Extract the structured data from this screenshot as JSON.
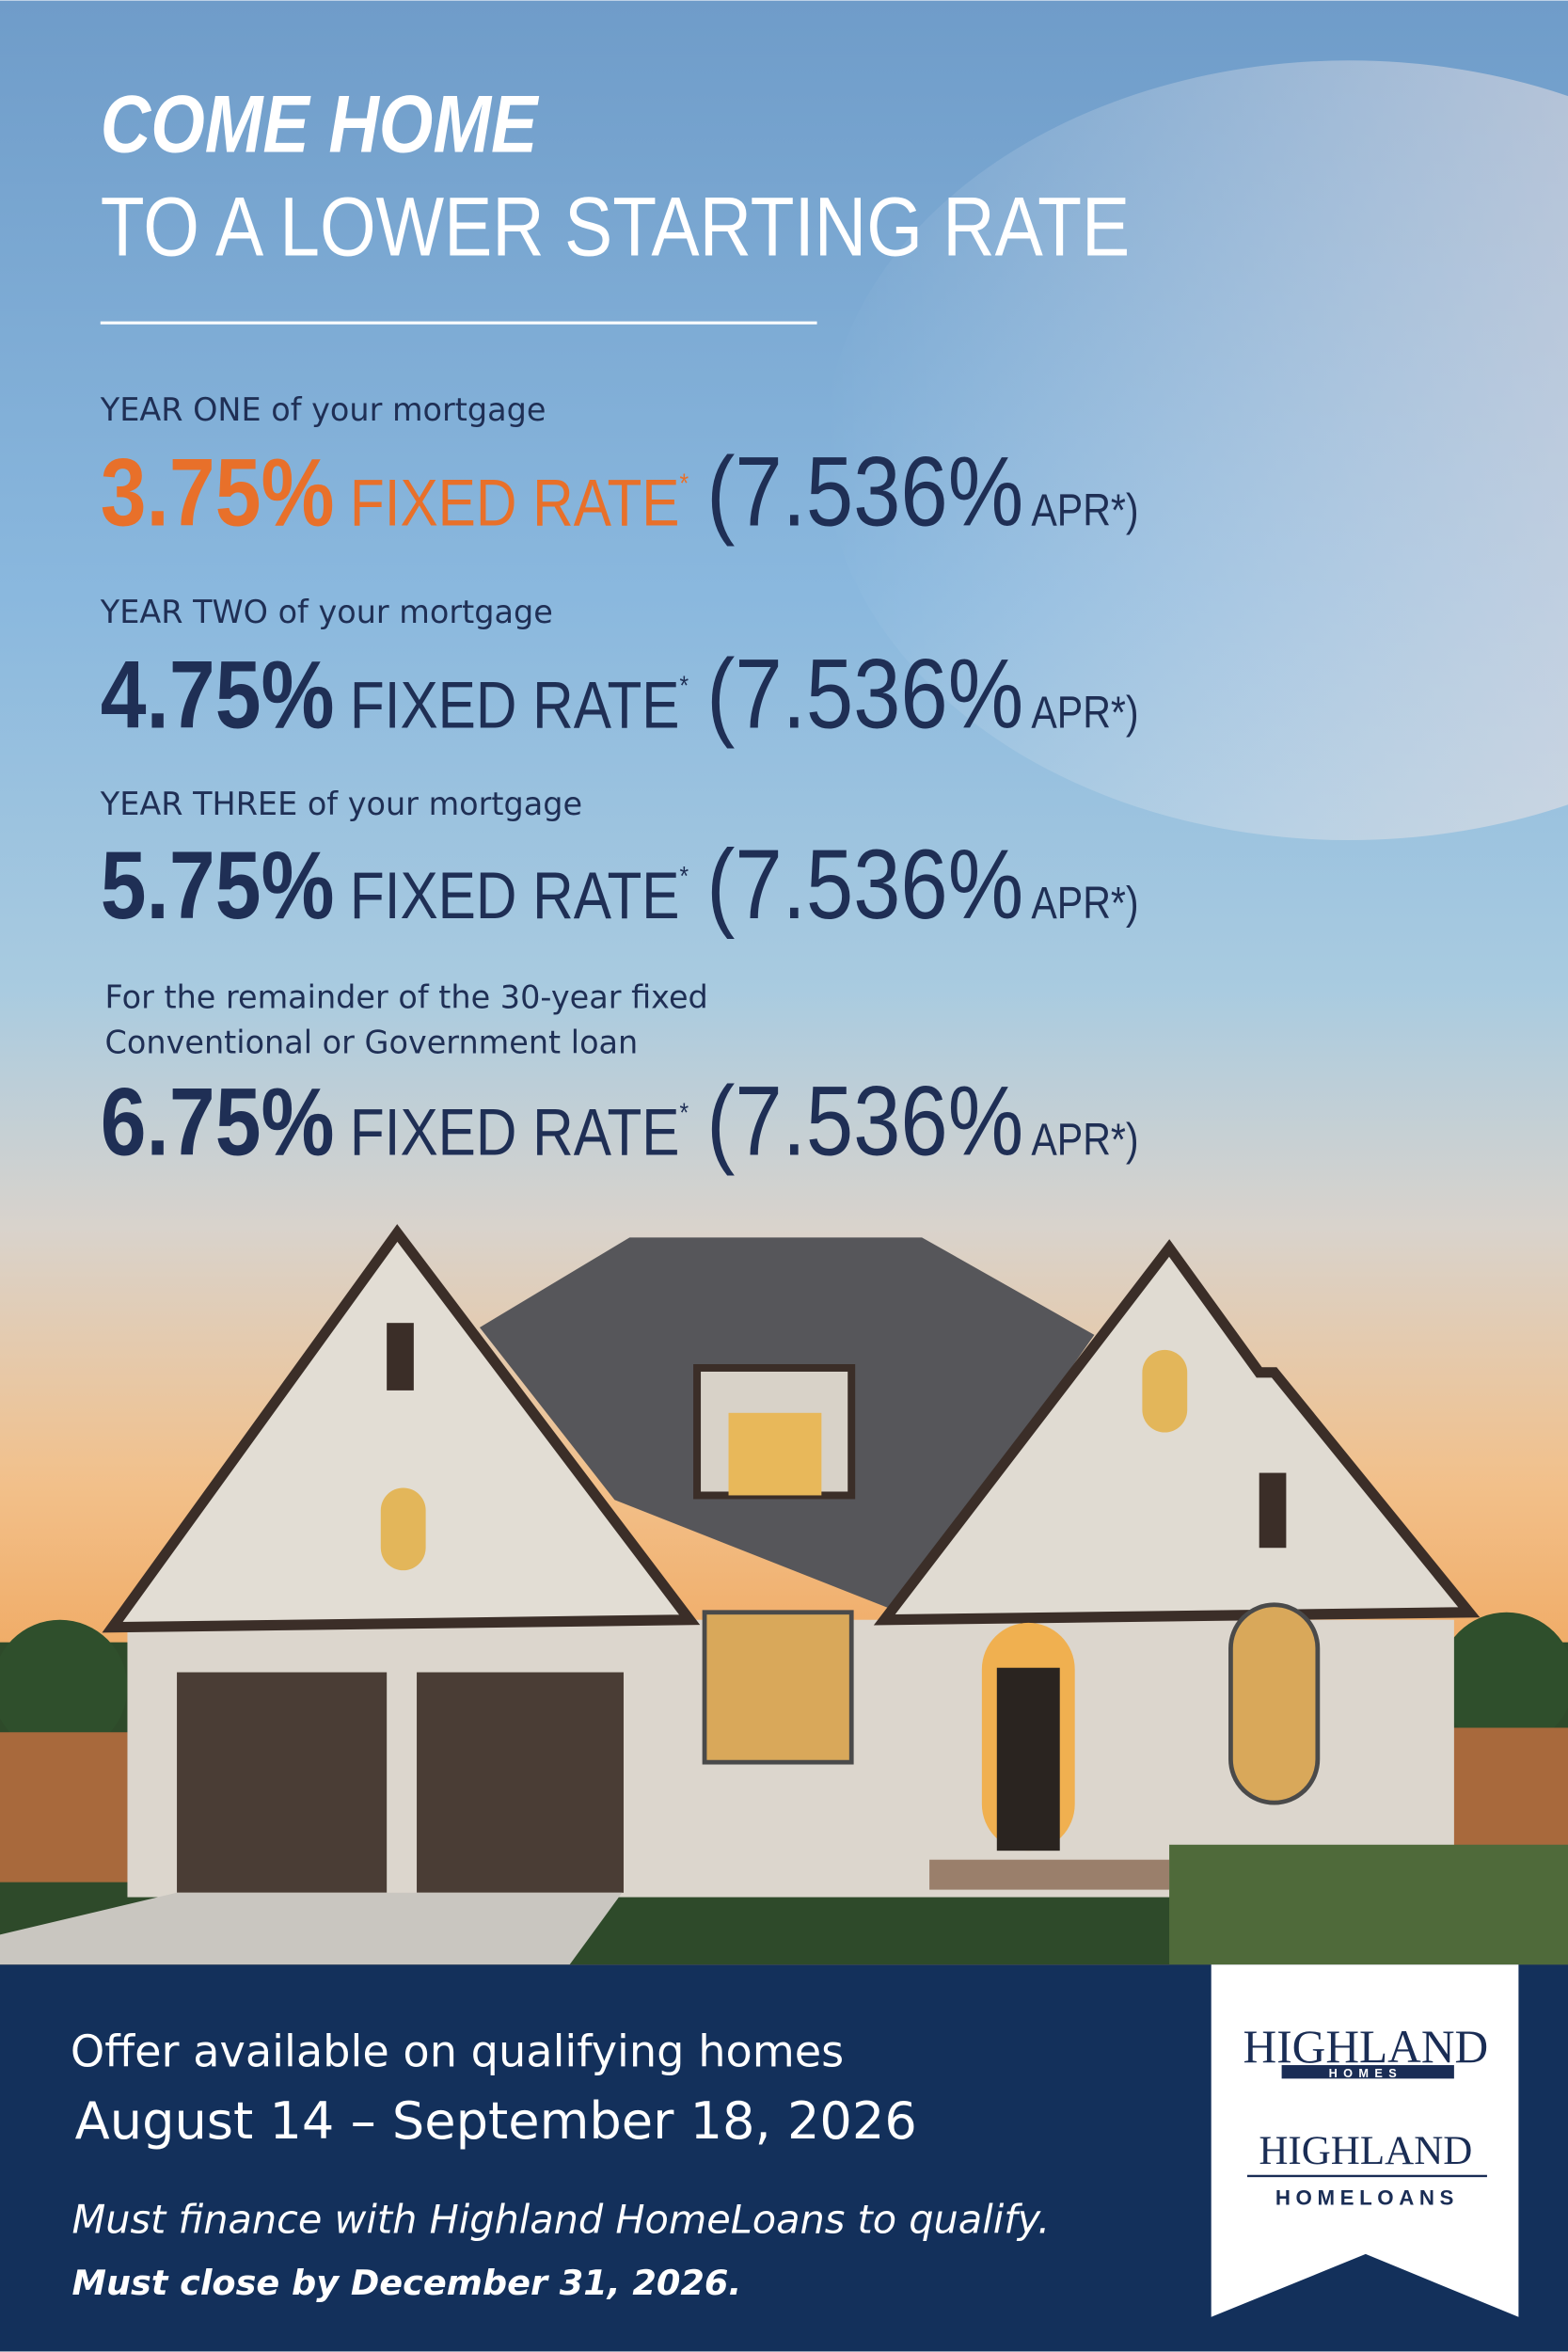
{
  "header": {
    "title": "COME HOME",
    "subtitle": "TO A LOWER STARTING RATE"
  },
  "rates": [
    {
      "label": [
        "YEAR ONE of your mortgage"
      ],
      "rate": "3.75%",
      "rate_label": "FIXED RATE",
      "mark": "*",
      "apr": "(7.536%",
      "apr_label": "APR*)"
    },
    {
      "label": [
        "YEAR TWO of your mortgage"
      ],
      "rate": "4.75%",
      "rate_label": "FIXED RATE",
      "mark": "*",
      "apr": "(7.536%",
      "apr_label": "APR*)"
    },
    {
      "label": [
        "YEAR THREE of your mortgage"
      ],
      "rate": "5.75%",
      "rate_label": "FIXED RATE",
      "mark": "*",
      "apr": "(7.536%",
      "apr_label": "APR*)"
    },
    {
      "label": [
        "For the remainder of the 30-year fixed",
        "Conventional or Government loan"
      ],
      "rate": "6.75%",
      "rate_label": "FIXED RATE",
      "mark": "*",
      "apr": "(7.536%",
      "apr_label": "APR*)"
    }
  ],
  "footer": {
    "offer": "Offer available on qualifying homes",
    "dates": "August 14 – September 18, 2026",
    "note": "Must finance with Highland HomeLoans to qualify.",
    "deadline": "Must close by December 31, 2026."
  },
  "logo": {
    "homes_name": "HIGHLAND",
    "homes_sub": "HOMES",
    "loans_name": "HIGHLAND",
    "loans_sub": "HOMELOANS"
  }
}
